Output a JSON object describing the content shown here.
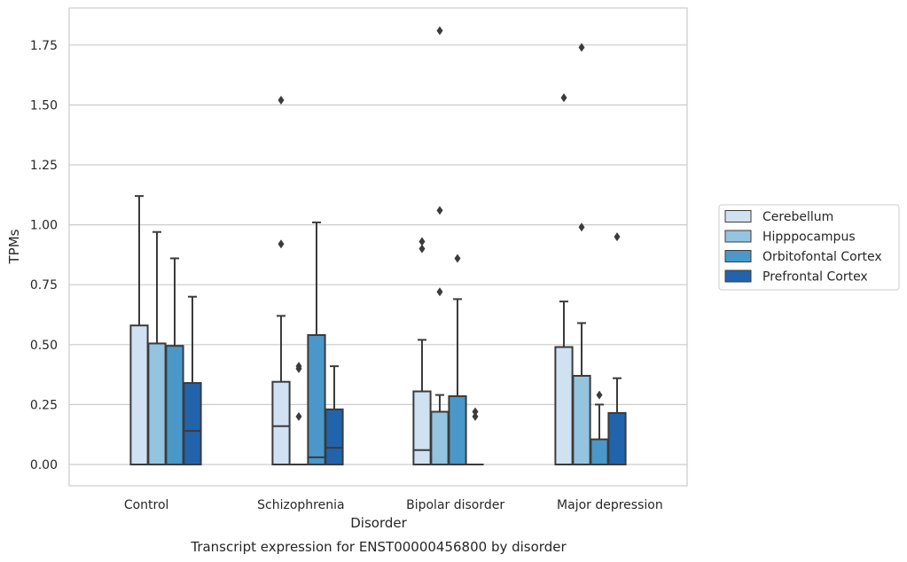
{
  "chart_data": {
    "type": "box",
    "title": "Transcript expression for ENST00000456800 by disorder",
    "xlabel": "Disorder",
    "ylabel": "TPMs",
    "ylim": [
      -0.09,
      1.9
    ],
    "yticks": [
      "0.00",
      "0.25",
      "0.50",
      "0.75",
      "1.00",
      "1.25",
      "1.50",
      "1.75"
    ],
    "grid": true,
    "legend_position": "right",
    "categories": [
      "Control",
      "Schizophrenia",
      "Bipolar disorder",
      "Major depression"
    ],
    "series": [
      {
        "name": "Cerebellum",
        "color": "#d0e1f2",
        "boxes": [
          {
            "min": 0.0,
            "q1": 0.0,
            "median": 0.0,
            "q3": 0.58,
            "max": 1.12,
            "outliers": []
          },
          {
            "min": 0.0,
            "q1": 0.0,
            "median": 0.16,
            "q3": 0.345,
            "max": 0.62,
            "outliers": [
              0.92,
              1.52
            ]
          },
          {
            "min": 0.0,
            "q1": 0.0,
            "median": 0.06,
            "q3": 0.305,
            "max": 0.52,
            "outliers": [
              0.9,
              0.93
            ]
          },
          {
            "min": 0.0,
            "q1": 0.0,
            "median": 0.0,
            "q3": 0.49,
            "max": 0.68,
            "outliers": [
              1.53
            ]
          }
        ]
      },
      {
        "name": "Hipppocampus",
        "color": "#94c4df",
        "boxes": [
          {
            "min": 0.0,
            "q1": 0.0,
            "median": 0.0,
            "q3": 0.505,
            "max": 0.97,
            "outliers": []
          },
          {
            "min": 0.0,
            "q1": 0.0,
            "median": 0.0,
            "q3": 0.0,
            "max": 0.0,
            "outliers": [
              0.2,
              0.4,
              0.41
            ]
          },
          {
            "min": 0.0,
            "q1": 0.0,
            "median": 0.0,
            "q3": 0.22,
            "max": 0.29,
            "outliers": [
              0.72,
              1.06,
              1.81
            ]
          },
          {
            "min": 0.0,
            "q1": 0.0,
            "median": 0.0,
            "q3": 0.37,
            "max": 0.59,
            "outliers": [
              0.99,
              1.74
            ]
          }
        ]
      },
      {
        "name": "Orbitofontal Cortex",
        "color": "#4a98c9",
        "boxes": [
          {
            "min": 0.0,
            "q1": 0.0,
            "median": 0.0,
            "q3": 0.495,
            "max": 0.86,
            "outliers": []
          },
          {
            "min": 0.0,
            "q1": 0.0,
            "median": 0.03,
            "q3": 0.54,
            "max": 1.01,
            "outliers": []
          },
          {
            "min": 0.0,
            "q1": 0.0,
            "median": 0.0,
            "q3": 0.285,
            "max": 0.69,
            "outliers": [
              0.86
            ]
          },
          {
            "min": 0.0,
            "q1": 0.0,
            "median": 0.0,
            "q3": 0.105,
            "max": 0.25,
            "outliers": [
              0.29
            ]
          }
        ]
      },
      {
        "name": "Prefrontal Cortex",
        "color": "#2164ab",
        "boxes": [
          {
            "min": 0.0,
            "q1": 0.0,
            "median": 0.14,
            "q3": 0.34,
            "max": 0.7,
            "outliers": []
          },
          {
            "min": 0.0,
            "q1": 0.0,
            "median": 0.07,
            "q3": 0.23,
            "max": 0.41,
            "outliers": []
          },
          {
            "min": 0.0,
            "q1": 0.0,
            "median": 0.0,
            "q3": 0.0,
            "max": 0.0,
            "outliers": [
              0.2,
              0.22
            ]
          },
          {
            "min": 0.0,
            "q1": 0.0,
            "median": 0.0,
            "q3": 0.215,
            "max": 0.36,
            "outliers": [
              0.95
            ]
          }
        ]
      }
    ]
  }
}
